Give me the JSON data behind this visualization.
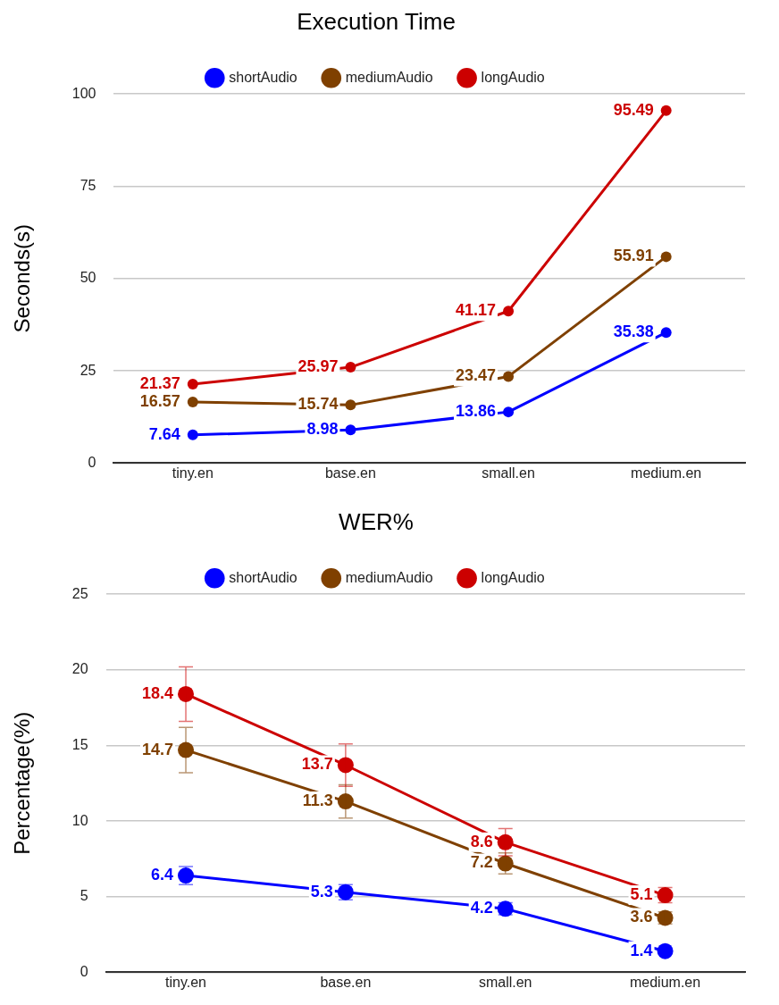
{
  "chart_data": [
    {
      "type": "line",
      "title": "Execution Time",
      "ylabel": "Seconds(s)",
      "categories": [
        "tiny.en",
        "base.en",
        "small.en",
        "medium.en"
      ],
      "series": [
        {
          "name": "shortAudio",
          "color": "#0000ff",
          "values": [
            7.64,
            8.98,
            13.86,
            35.38
          ]
        },
        {
          "name": "mediumAudio",
          "color": "#7f4000",
          "values": [
            16.57,
            15.74,
            23.47,
            55.91
          ]
        },
        {
          "name": "longAudio",
          "color": "#cc0000",
          "values": [
            21.37,
            25.97,
            41.17,
            95.49
          ]
        }
      ],
      "ylim": [
        0,
        100
      ],
      "yticks": [
        0,
        25,
        50,
        75,
        100
      ],
      "grid": "y",
      "legend": "top",
      "marker": "circle",
      "line_style": "solid",
      "data_labels": true
    },
    {
      "type": "line",
      "title": "WER%",
      "ylabel": "Percentage(%)",
      "categories": [
        "tiny.en",
        "base.en",
        "small.en",
        "medium.en"
      ],
      "series": [
        {
          "name": "shortAudio",
          "color": "#0000ff",
          "values": [
            6.4,
            5.3,
            4.2,
            1.4
          ],
          "errors": [
            0.6,
            0.5,
            0.4,
            0.1
          ]
        },
        {
          "name": "mediumAudio",
          "color": "#7f4000",
          "values": [
            14.7,
            11.3,
            7.2,
            3.6
          ],
          "errors": [
            1.5,
            1.1,
            0.7,
            0.4
          ]
        },
        {
          "name": "longAudio",
          "color": "#cc0000",
          "values": [
            18.4,
            13.7,
            8.6,
            5.1
          ],
          "errors": [
            1.8,
            1.4,
            0.9,
            0.5
          ]
        }
      ],
      "ylim": [
        0,
        25
      ],
      "yticks": [
        0,
        5,
        10,
        15,
        20,
        25
      ],
      "grid": "y",
      "legend": "top",
      "marker": "circle",
      "line_style": "solid",
      "data_labels": true
    }
  ]
}
